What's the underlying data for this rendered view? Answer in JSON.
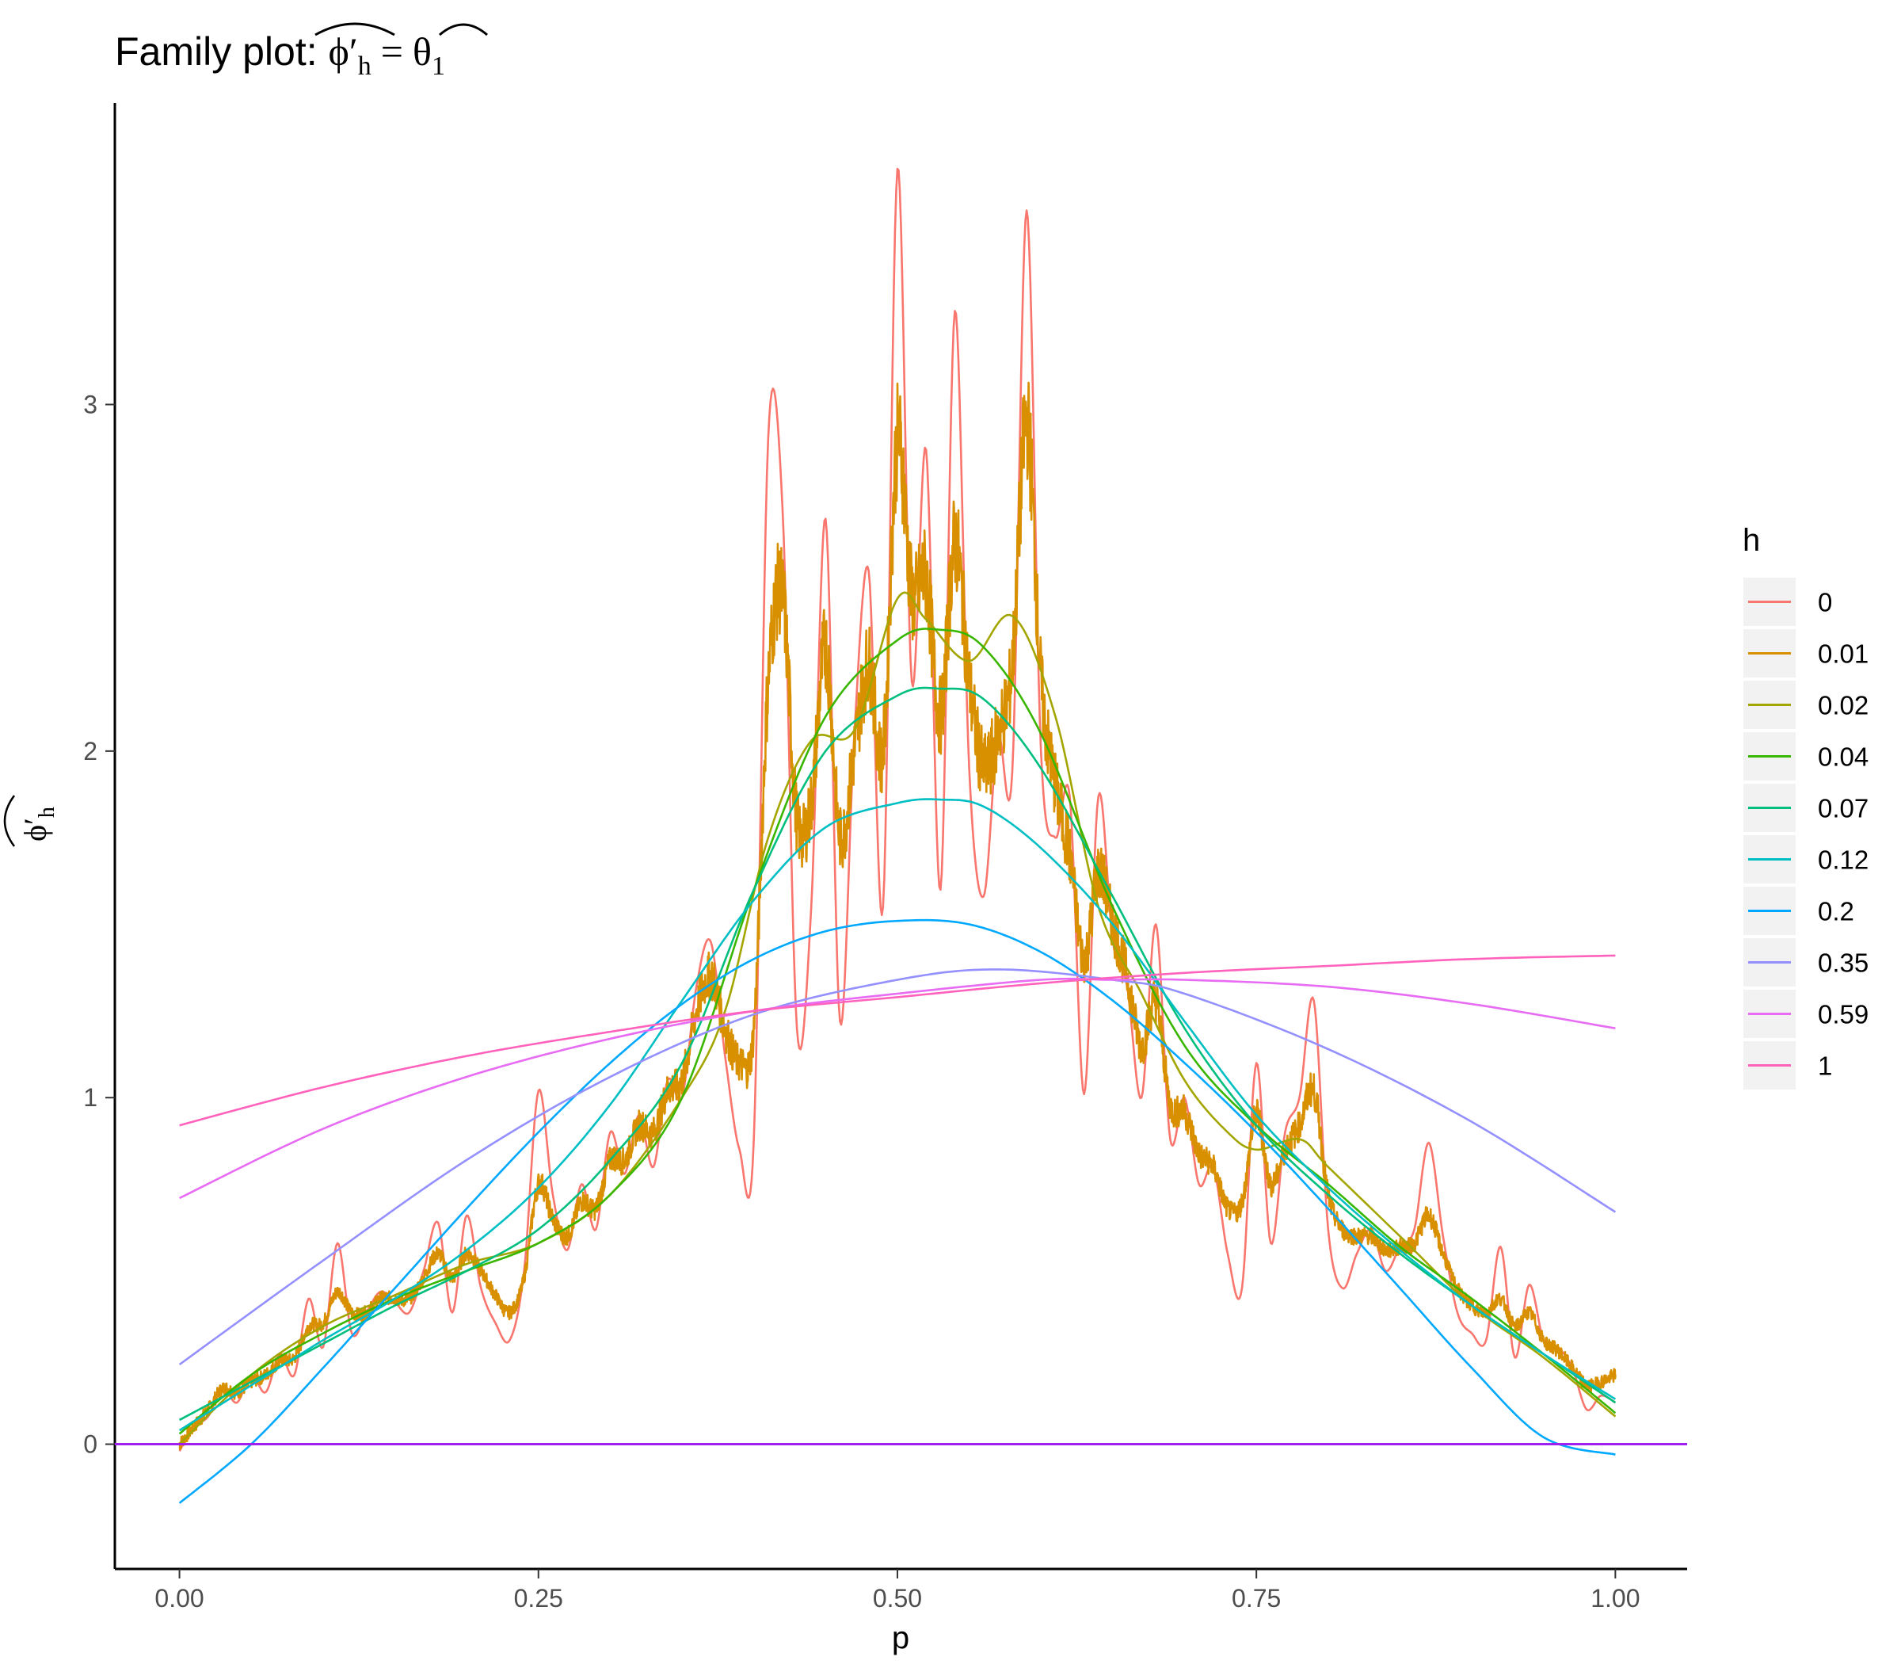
{
  "chart_data": {
    "type": "line",
    "title": {
      "prefix": "Family plot: ",
      "lhs_base": "ϕ′",
      "lhs_sub": "h",
      "equals": "=",
      "rhs_base": "θ",
      "rhs_sub": "1"
    },
    "xlabel": "p",
    "ylabel": {
      "base": "ϕ′",
      "sub": "h"
    },
    "xlim": [
      -0.045,
      1.05
    ],
    "ylim": [
      -0.36,
      3.87
    ],
    "x_ticks": [
      0.0,
      0.25,
      0.5,
      0.75,
      1.0
    ],
    "x_tick_labels": [
      "0.00",
      "0.25",
      "0.50",
      "0.75",
      "1.00"
    ],
    "y_ticks": [
      0,
      1,
      2,
      3
    ],
    "y_tick_labels": [
      "0",
      "1",
      "2",
      "3"
    ],
    "grid": false,
    "legend": {
      "title": "h",
      "position": "right"
    },
    "reference_line": {
      "y": 0,
      "color": "#a020f0"
    },
    "series": [
      {
        "name": "0",
        "color": "#F8766D",
        "kind": "oscillating",
        "x": [
          0.0,
          0.01,
          0.02,
          0.03,
          0.04,
          0.05,
          0.06,
          0.07,
          0.08,
          0.09,
          0.1,
          0.11,
          0.12,
          0.13,
          0.14,
          0.15,
          0.16,
          0.17,
          0.18,
          0.19,
          0.2,
          0.21,
          0.22,
          0.23,
          0.24,
          0.25,
          0.26,
          0.27,
          0.28,
          0.29,
          0.3,
          0.31,
          0.32,
          0.33,
          0.34,
          0.35,
          0.36,
          0.37,
          0.38,
          0.39,
          0.4,
          0.41,
          0.42,
          0.43,
          0.44,
          0.45,
          0.46,
          0.47,
          0.48,
          0.49,
          0.5,
          0.51,
          0.52,
          0.53,
          0.54,
          0.55,
          0.56,
          0.57,
          0.58,
          0.59,
          0.6,
          0.61,
          0.62,
          0.63,
          0.64,
          0.65,
          0.66,
          0.67,
          0.68,
          0.69,
          0.7,
          0.71,
          0.72,
          0.73,
          0.74,
          0.75,
          0.76,
          0.77,
          0.78,
          0.79,
          0.8,
          0.81,
          0.82,
          0.83,
          0.84,
          0.85,
          0.86,
          0.87,
          0.88,
          0.89,
          0.9,
          0.91,
          0.92,
          0.93,
          0.94,
          0.95,
          0.96,
          0.97,
          0.98,
          0.99,
          1.0
        ],
        "y": [
          -0.02,
          0.05,
          0.08,
          0.16,
          0.12,
          0.2,
          0.15,
          0.26,
          0.2,
          0.42,
          0.28,
          0.58,
          0.32,
          0.38,
          0.44,
          0.41,
          0.38,
          0.5,
          0.64,
          0.38,
          0.66,
          0.45,
          0.35,
          0.3,
          0.5,
          1.02,
          0.72,
          0.56,
          0.75,
          0.62,
          0.9,
          0.78,
          0.95,
          0.8,
          1.05,
          1.0,
          1.32,
          1.45,
          1.12,
          0.85,
          0.88,
          2.9,
          2.7,
          1.2,
          1.55,
          2.67,
          1.22,
          2.05,
          2.52,
          1.55,
          3.68,
          2.2,
          2.87,
          1.6,
          3.27,
          1.95,
          1.58,
          2.04,
          1.94,
          3.56,
          2.0,
          1.75,
          1.87,
          1.01,
          1.87,
          1.45,
          1.32,
          1.0,
          1.5,
          0.88,
          1.0,
          0.75,
          0.8,
          0.55,
          0.45,
          1.1,
          0.58,
          0.9,
          1.0,
          1.28,
          0.62,
          0.45,
          0.55,
          0.62,
          0.5,
          0.57,
          0.62,
          0.87,
          0.6,
          0.38,
          0.32,
          0.3,
          0.57,
          0.25,
          0.46,
          0.3,
          0.28,
          0.22,
          0.1,
          0.14,
          0.12
        ]
      },
      {
        "name": "0.01",
        "color": "#D89000",
        "kind": "jagged",
        "x": [
          0.0,
          0.01,
          0.02,
          0.03,
          0.04,
          0.05,
          0.06,
          0.07,
          0.08,
          0.09,
          0.1,
          0.11,
          0.12,
          0.13,
          0.14,
          0.15,
          0.16,
          0.17,
          0.18,
          0.19,
          0.2,
          0.21,
          0.22,
          0.23,
          0.24,
          0.25,
          0.26,
          0.27,
          0.28,
          0.29,
          0.3,
          0.31,
          0.32,
          0.33,
          0.34,
          0.35,
          0.36,
          0.37,
          0.38,
          0.39,
          0.4,
          0.41,
          0.42,
          0.43,
          0.44,
          0.45,
          0.46,
          0.47,
          0.48,
          0.49,
          0.5,
          0.51,
          0.52,
          0.53,
          0.54,
          0.55,
          0.56,
          0.57,
          0.58,
          0.59,
          0.6,
          0.61,
          0.62,
          0.63,
          0.64,
          0.65,
          0.66,
          0.67,
          0.68,
          0.69,
          0.7,
          0.71,
          0.72,
          0.73,
          0.74,
          0.75,
          0.76,
          0.77,
          0.78,
          0.79,
          0.8,
          0.81,
          0.82,
          0.83,
          0.84,
          0.85,
          0.86,
          0.87,
          0.88,
          0.89,
          0.9,
          0.91,
          0.92,
          0.93,
          0.94,
          0.95,
          0.96,
          0.97,
          0.98,
          0.99,
          1.0
        ],
        "y": [
          0.0,
          0.05,
          0.1,
          0.16,
          0.15,
          0.18,
          0.2,
          0.24,
          0.25,
          0.34,
          0.35,
          0.44,
          0.38,
          0.38,
          0.42,
          0.42,
          0.42,
          0.48,
          0.55,
          0.48,
          0.55,
          0.5,
          0.43,
          0.38,
          0.48,
          0.75,
          0.65,
          0.6,
          0.7,
          0.68,
          0.82,
          0.82,
          0.92,
          0.9,
          1.02,
          1.05,
          1.25,
          1.35,
          1.2,
          1.1,
          1.2,
          2.2,
          2.45,
          1.8,
          1.85,
          2.3,
          1.75,
          2.0,
          2.25,
          2.0,
          2.9,
          2.45,
          2.5,
          2.1,
          2.6,
          2.2,
          1.95,
          2.05,
          2.25,
          2.95,
          2.2,
          1.9,
          1.7,
          1.4,
          1.65,
          1.5,
          1.35,
          1.15,
          1.28,
          0.98,
          0.96,
          0.84,
          0.8,
          0.68,
          0.7,
          0.95,
          0.75,
          0.85,
          0.92,
          1.02,
          0.72,
          0.62,
          0.6,
          0.6,
          0.56,
          0.57,
          0.58,
          0.66,
          0.55,
          0.45,
          0.4,
          0.38,
          0.42,
          0.34,
          0.38,
          0.3,
          0.27,
          0.22,
          0.17,
          0.18,
          0.2
        ]
      },
      {
        "name": "0.02",
        "color": "#A3A500",
        "kind": "smooth",
        "x": [
          0.0,
          0.05,
          0.1,
          0.15,
          0.2,
          0.25,
          0.3,
          0.35,
          0.38,
          0.41,
          0.44,
          0.47,
          0.5,
          0.52,
          0.55,
          0.58,
          0.61,
          0.64,
          0.67,
          0.7,
          0.73,
          0.75,
          0.78,
          0.8,
          0.85,
          0.9,
          0.95,
          1.0
        ],
        "y": [
          0.0,
          0.2,
          0.34,
          0.43,
          0.52,
          0.58,
          0.72,
          1.0,
          1.25,
          1.75,
          2.03,
          2.06,
          2.44,
          2.38,
          2.26,
          2.39,
          2.1,
          1.55,
          1.3,
          1.05,
          0.9,
          0.85,
          0.88,
          0.8,
          0.6,
          0.4,
          0.25,
          0.08
        ]
      },
      {
        "name": "0.04",
        "color": "#39B600",
        "kind": "smooth",
        "x": [
          0.0,
          0.05,
          0.1,
          0.15,
          0.2,
          0.25,
          0.3,
          0.35,
          0.4,
          0.45,
          0.5,
          0.53,
          0.56,
          0.6,
          0.65,
          0.7,
          0.75,
          0.8,
          0.85,
          0.9,
          0.95,
          1.0
        ],
        "y": [
          0.03,
          0.2,
          0.32,
          0.42,
          0.5,
          0.58,
          0.72,
          1.0,
          1.6,
          2.1,
          2.32,
          2.35,
          2.3,
          2.05,
          1.55,
          1.15,
          0.92,
          0.75,
          0.57,
          0.42,
          0.26,
          0.09
        ]
      },
      {
        "name": "0.07",
        "color": "#00BF7D",
        "kind": "smooth",
        "x": [
          0.0,
          0.05,
          0.1,
          0.15,
          0.2,
          0.25,
          0.3,
          0.35,
          0.4,
          0.45,
          0.5,
          0.53,
          0.56,
          0.6,
          0.65,
          0.7,
          0.75,
          0.8,
          0.85,
          0.9,
          0.95,
          1.0
        ],
        "y": [
          0.07,
          0.18,
          0.29,
          0.4,
          0.5,
          0.62,
          0.82,
          1.1,
          1.6,
          2.0,
          2.16,
          2.18,
          2.15,
          1.95,
          1.58,
          1.2,
          0.92,
          0.72,
          0.55,
          0.4,
          0.26,
          0.12
        ]
      },
      {
        "name": "0.12",
        "color": "#00BFC4",
        "kind": "smooth",
        "x": [
          0.0,
          0.05,
          0.1,
          0.15,
          0.2,
          0.25,
          0.3,
          0.35,
          0.4,
          0.45,
          0.5,
          0.53,
          0.56,
          0.6,
          0.65,
          0.7,
          0.75,
          0.8,
          0.85,
          0.9,
          0.95,
          1.0
        ],
        "y": [
          0.04,
          0.17,
          0.3,
          0.42,
          0.56,
          0.74,
          0.98,
          1.28,
          1.57,
          1.78,
          1.85,
          1.86,
          1.84,
          1.72,
          1.5,
          1.22,
          0.95,
          0.74,
          0.56,
          0.4,
          0.26,
          0.13
        ]
      },
      {
        "name": "0.2",
        "color": "#00A9FF",
        "kind": "smooth",
        "x": [
          0.0,
          0.05,
          0.1,
          0.15,
          0.2,
          0.25,
          0.3,
          0.35,
          0.4,
          0.45,
          0.5,
          0.55,
          0.6,
          0.65,
          0.7,
          0.75,
          0.8,
          0.85,
          0.9,
          0.95,
          1.0
        ],
        "y": [
          -0.17,
          0.0,
          0.22,
          0.45,
          0.68,
          0.9,
          1.1,
          1.27,
          1.4,
          1.48,
          1.51,
          1.5,
          1.42,
          1.28,
          1.1,
          0.9,
          0.68,
          0.45,
          0.22,
          0.02,
          -0.03
        ]
      },
      {
        "name": "0.35",
        "color": "#9590FF",
        "kind": "smooth",
        "x": [
          0.0,
          0.1,
          0.2,
          0.3,
          0.4,
          0.5,
          0.57,
          0.65,
          0.7,
          0.8,
          0.9,
          1.0
        ],
        "y": [
          0.23,
          0.53,
          0.82,
          1.06,
          1.24,
          1.34,
          1.37,
          1.34,
          1.3,
          1.14,
          0.93,
          0.67
        ]
      },
      {
        "name": "0.59",
        "color": "#E76BF3",
        "kind": "smooth",
        "x": [
          0.0,
          0.1,
          0.2,
          0.3,
          0.4,
          0.5,
          0.6,
          0.65,
          0.7,
          0.8,
          0.9,
          1.0
        ],
        "y": [
          0.71,
          0.91,
          1.06,
          1.17,
          1.25,
          1.3,
          1.34,
          1.34,
          1.34,
          1.32,
          1.27,
          1.2
        ]
      },
      {
        "name": "1",
        "color": "#FF62BC",
        "kind": "smooth",
        "x": [
          0.0,
          0.1,
          0.2,
          0.3,
          0.4,
          0.5,
          0.6,
          0.7,
          0.8,
          0.9,
          1.0
        ],
        "y": [
          0.92,
          1.03,
          1.12,
          1.19,
          1.25,
          1.29,
          1.33,
          1.36,
          1.38,
          1.4,
          1.41
        ]
      }
    ]
  }
}
